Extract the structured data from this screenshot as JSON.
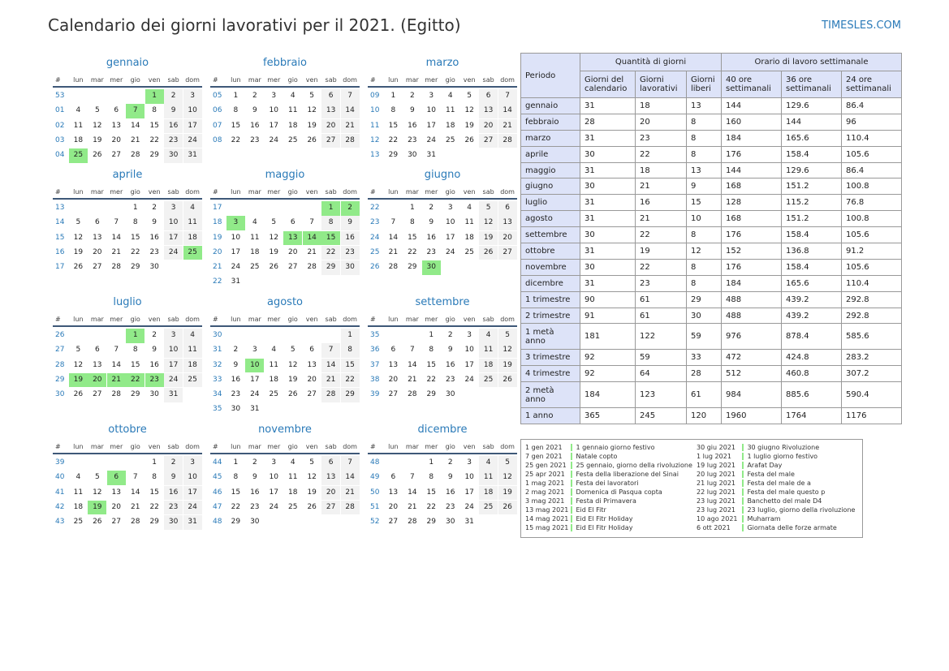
{
  "title": "Calendario dei giorni lavorativi per il 2021. (Egitto)",
  "site": "TIMESLES.COM",
  "day_headers": [
    "#",
    "lun",
    "mar",
    "mer",
    "gio",
    "ven",
    "sab",
    "dom"
  ],
  "colors": {
    "holiday": "#91ea89",
    "weekend": "#f2f2f2",
    "accent": "#2a7ab8"
  },
  "months": [
    {
      "name": "gennaio",
      "rows": [
        {
          "wk": "53",
          "days": [
            "",
            "",
            "",
            "",
            "1",
            "2",
            "3"
          ]
        },
        {
          "wk": "01",
          "days": [
            "4",
            "5",
            "6",
            "7",
            "8",
            "9",
            "10"
          ]
        },
        {
          "wk": "02",
          "days": [
            "11",
            "12",
            "13",
            "14",
            "15",
            "16",
            "17"
          ]
        },
        {
          "wk": "03",
          "days": [
            "18",
            "19",
            "20",
            "21",
            "22",
            "23",
            "24"
          ]
        },
        {
          "wk": "04",
          "days": [
            "25",
            "26",
            "27",
            "28",
            "29",
            "30",
            "31"
          ]
        }
      ],
      "holidays": [
        "1",
        "7",
        "25"
      ]
    },
    {
      "name": "febbraio",
      "rows": [
        {
          "wk": "05",
          "days": [
            "1",
            "2",
            "3",
            "4",
            "5",
            "6",
            "7"
          ]
        },
        {
          "wk": "06",
          "days": [
            "8",
            "9",
            "10",
            "11",
            "12",
            "13",
            "14"
          ]
        },
        {
          "wk": "07",
          "days": [
            "15",
            "16",
            "17",
            "18",
            "19",
            "20",
            "21"
          ]
        },
        {
          "wk": "08",
          "days": [
            "22",
            "23",
            "24",
            "25",
            "26",
            "27",
            "28"
          ]
        }
      ],
      "holidays": []
    },
    {
      "name": "marzo",
      "rows": [
        {
          "wk": "09",
          "days": [
            "1",
            "2",
            "3",
            "4",
            "5",
            "6",
            "7"
          ]
        },
        {
          "wk": "10",
          "days": [
            "8",
            "9",
            "10",
            "11",
            "12",
            "13",
            "14"
          ]
        },
        {
          "wk": "11",
          "days": [
            "15",
            "16",
            "17",
            "18",
            "19",
            "20",
            "21"
          ]
        },
        {
          "wk": "12",
          "days": [
            "22",
            "23",
            "24",
            "25",
            "26",
            "27",
            "28"
          ]
        },
        {
          "wk": "13",
          "days": [
            "29",
            "30",
            "31",
            "",
            "",
            "",
            ""
          ]
        }
      ],
      "holidays": []
    },
    {
      "name": "aprile",
      "rows": [
        {
          "wk": "13",
          "days": [
            "",
            "",
            "",
            "1",
            "2",
            "3",
            "4"
          ]
        },
        {
          "wk": "14",
          "days": [
            "5",
            "6",
            "7",
            "8",
            "9",
            "10",
            "11"
          ]
        },
        {
          "wk": "15",
          "days": [
            "12",
            "13",
            "14",
            "15",
            "16",
            "17",
            "18"
          ]
        },
        {
          "wk": "16",
          "days": [
            "19",
            "20",
            "21",
            "22",
            "23",
            "24",
            "25"
          ]
        },
        {
          "wk": "17",
          "days": [
            "26",
            "27",
            "28",
            "29",
            "30",
            "",
            ""
          ]
        }
      ],
      "holidays": [
        "25"
      ]
    },
    {
      "name": "maggio",
      "rows": [
        {
          "wk": "17",
          "days": [
            "",
            "",
            "",
            "",
            "",
            "1",
            "2"
          ]
        },
        {
          "wk": "18",
          "days": [
            "3",
            "4",
            "5",
            "6",
            "7",
            "8",
            "9"
          ]
        },
        {
          "wk": "19",
          "days": [
            "10",
            "11",
            "12",
            "13",
            "14",
            "15",
            "16"
          ]
        },
        {
          "wk": "20",
          "days": [
            "17",
            "18",
            "19",
            "20",
            "21",
            "22",
            "23"
          ]
        },
        {
          "wk": "21",
          "days": [
            "24",
            "25",
            "26",
            "27",
            "28",
            "29",
            "30"
          ]
        },
        {
          "wk": "22",
          "days": [
            "31",
            "",
            "",
            "",
            "",
            "",
            ""
          ]
        }
      ],
      "holidays": [
        "1",
        "2",
        "3",
        "13",
        "14",
        "15"
      ]
    },
    {
      "name": "giugno",
      "rows": [
        {
          "wk": "22",
          "days": [
            "",
            "1",
            "2",
            "3",
            "4",
            "5",
            "6"
          ]
        },
        {
          "wk": "23",
          "days": [
            "7",
            "8",
            "9",
            "10",
            "11",
            "12",
            "13"
          ]
        },
        {
          "wk": "24",
          "days": [
            "14",
            "15",
            "16",
            "17",
            "18",
            "19",
            "20"
          ]
        },
        {
          "wk": "25",
          "days": [
            "21",
            "22",
            "23",
            "24",
            "25",
            "26",
            "27"
          ]
        },
        {
          "wk": "26",
          "days": [
            "28",
            "29",
            "30",
            "",
            "",
            "",
            ""
          ]
        }
      ],
      "holidays": [
        "30"
      ]
    },
    {
      "name": "luglio",
      "rows": [
        {
          "wk": "26",
          "days": [
            "",
            "",
            "",
            "1",
            "2",
            "3",
            "4"
          ]
        },
        {
          "wk": "27",
          "days": [
            "5",
            "6",
            "7",
            "8",
            "9",
            "10",
            "11"
          ]
        },
        {
          "wk": "28",
          "days": [
            "12",
            "13",
            "14",
            "15",
            "16",
            "17",
            "18"
          ]
        },
        {
          "wk": "29",
          "days": [
            "19",
            "20",
            "21",
            "22",
            "23",
            "24",
            "25"
          ]
        },
        {
          "wk": "30",
          "days": [
            "26",
            "27",
            "28",
            "29",
            "30",
            "31",
            ""
          ]
        }
      ],
      "holidays": [
        "1",
        "19",
        "20",
        "21",
        "22",
        "23"
      ]
    },
    {
      "name": "agosto",
      "rows": [
        {
          "wk": "30",
          "days": [
            "",
            "",
            "",
            "",
            "",
            "",
            "1"
          ]
        },
        {
          "wk": "31",
          "days": [
            "2",
            "3",
            "4",
            "5",
            "6",
            "7",
            "8"
          ]
        },
        {
          "wk": "32",
          "days": [
            "9",
            "10",
            "11",
            "12",
            "13",
            "14",
            "15"
          ]
        },
        {
          "wk": "33",
          "days": [
            "16",
            "17",
            "18",
            "19",
            "20",
            "21",
            "22"
          ]
        },
        {
          "wk": "34",
          "days": [
            "23",
            "24",
            "25",
            "26",
            "27",
            "28",
            "29"
          ]
        },
        {
          "wk": "35",
          "days": [
            "30",
            "31",
            "",
            "",
            "",
            "",
            ""
          ]
        }
      ],
      "holidays": [
        "10"
      ]
    },
    {
      "name": "settembre",
      "rows": [
        {
          "wk": "35",
          "days": [
            "",
            "",
            "1",
            "2",
            "3",
            "4",
            "5"
          ]
        },
        {
          "wk": "36",
          "days": [
            "6",
            "7",
            "8",
            "9",
            "10",
            "11",
            "12"
          ]
        },
        {
          "wk": "37",
          "days": [
            "13",
            "14",
            "15",
            "16",
            "17",
            "18",
            "19"
          ]
        },
        {
          "wk": "38",
          "days": [
            "20",
            "21",
            "22",
            "23",
            "24",
            "25",
            "26"
          ]
        },
        {
          "wk": "39",
          "days": [
            "27",
            "28",
            "29",
            "30",
            "",
            "",
            ""
          ]
        }
      ],
      "holidays": []
    },
    {
      "name": "ottobre",
      "rows": [
        {
          "wk": "39",
          "days": [
            "",
            "",
            "",
            "",
            "1",
            "2",
            "3"
          ]
        },
        {
          "wk": "40",
          "days": [
            "4",
            "5",
            "6",
            "7",
            "8",
            "9",
            "10"
          ]
        },
        {
          "wk": "41",
          "days": [
            "11",
            "12",
            "13",
            "14",
            "15",
            "16",
            "17"
          ]
        },
        {
          "wk": "42",
          "days": [
            "18",
            "19",
            "20",
            "21",
            "22",
            "23",
            "24"
          ]
        },
        {
          "wk": "43",
          "days": [
            "25",
            "26",
            "27",
            "28",
            "29",
            "30",
            "31"
          ]
        }
      ],
      "holidays": [
        "6",
        "19"
      ]
    },
    {
      "name": "novembre",
      "rows": [
        {
          "wk": "44",
          "days": [
            "1",
            "2",
            "3",
            "4",
            "5",
            "6",
            "7"
          ]
        },
        {
          "wk": "45",
          "days": [
            "8",
            "9",
            "10",
            "11",
            "12",
            "13",
            "14"
          ]
        },
        {
          "wk": "46",
          "days": [
            "15",
            "16",
            "17",
            "18",
            "19",
            "20",
            "21"
          ]
        },
        {
          "wk": "47",
          "days": [
            "22",
            "23",
            "24",
            "25",
            "26",
            "27",
            "28"
          ]
        },
        {
          "wk": "48",
          "days": [
            "29",
            "30",
            "",
            "",
            "",
            "",
            ""
          ]
        }
      ],
      "holidays": []
    },
    {
      "name": "dicembre",
      "rows": [
        {
          "wk": "48",
          "days": [
            "",
            "",
            "1",
            "2",
            "3",
            "4",
            "5"
          ]
        },
        {
          "wk": "49",
          "days": [
            "6",
            "7",
            "8",
            "9",
            "10",
            "11",
            "12"
          ]
        },
        {
          "wk": "50",
          "days": [
            "13",
            "14",
            "15",
            "16",
            "17",
            "18",
            "19"
          ]
        },
        {
          "wk": "51",
          "days": [
            "20",
            "21",
            "22",
            "23",
            "24",
            "25",
            "26"
          ]
        },
        {
          "wk": "52",
          "days": [
            "27",
            "28",
            "29",
            "30",
            "31",
            "",
            ""
          ]
        }
      ],
      "holidays": []
    }
  ],
  "table": {
    "periodo": "Periodo",
    "group1": "Quantità di giorni",
    "group2": "Orario di lavoro settimanale",
    "cols": [
      "Giorni del calendario",
      "Giorni lavorativi",
      "Giorni liberi",
      "40 ore settimanali",
      "36 ore settimanali",
      "24 ore settimanali"
    ],
    "rows": [
      [
        "gennaio",
        "31",
        "18",
        "13",
        "144",
        "129.6",
        "86.4"
      ],
      [
        "febbraio",
        "28",
        "20",
        "8",
        "160",
        "144",
        "96"
      ],
      [
        "marzo",
        "31",
        "23",
        "8",
        "184",
        "165.6",
        "110.4"
      ],
      [
        "aprile",
        "30",
        "22",
        "8",
        "176",
        "158.4",
        "105.6"
      ],
      [
        "maggio",
        "31",
        "18",
        "13",
        "144",
        "129.6",
        "86.4"
      ],
      [
        "giugno",
        "30",
        "21",
        "9",
        "168",
        "151.2",
        "100.8"
      ],
      [
        "luglio",
        "31",
        "16",
        "15",
        "128",
        "115.2",
        "76.8"
      ],
      [
        "agosto",
        "31",
        "21",
        "10",
        "168",
        "151.2",
        "100.8"
      ],
      [
        "settembre",
        "30",
        "22",
        "8",
        "176",
        "158.4",
        "105.6"
      ],
      [
        "ottobre",
        "31",
        "19",
        "12",
        "152",
        "136.8",
        "91.2"
      ],
      [
        "novembre",
        "30",
        "22",
        "8",
        "176",
        "158.4",
        "105.6"
      ],
      [
        "dicembre",
        "31",
        "23",
        "8",
        "184",
        "165.6",
        "110.4"
      ],
      [
        "1 trimestre",
        "90",
        "61",
        "29",
        "488",
        "439.2",
        "292.8"
      ],
      [
        "2 trimestre",
        "91",
        "61",
        "30",
        "488",
        "439.2",
        "292.8"
      ],
      [
        "1 metà anno",
        "181",
        "122",
        "59",
        "976",
        "878.4",
        "585.6"
      ],
      [
        "3 trimestre",
        "92",
        "59",
        "33",
        "472",
        "424.8",
        "283.2"
      ],
      [
        "4 trimestre",
        "92",
        "64",
        "28",
        "512",
        "460.8",
        "307.2"
      ],
      [
        "2 metà anno",
        "184",
        "123",
        "61",
        "984",
        "885.6",
        "590.4"
      ],
      [
        "1 anno",
        "365",
        "245",
        "120",
        "1960",
        "1764",
        "1176"
      ]
    ]
  },
  "holidays_left": [
    {
      "date": "1 gen 2021",
      "name": "1 gennaio giorno festivo"
    },
    {
      "date": "7 gen 2021",
      "name": "Natale copto"
    },
    {
      "date": "25 gen 2021",
      "name": "25 gennaio, giorno della rivoluzione"
    },
    {
      "date": "25 apr 2021",
      "name": "Festa della liberazione del Sinai"
    },
    {
      "date": "1 mag 2021",
      "name": "Festa dei lavoratori"
    },
    {
      "date": "2 mag 2021",
      "name": "Domenica di Pasqua copta"
    },
    {
      "date": "3 mag 2021",
      "name": "Festa di Primavera"
    },
    {
      "date": "13 mag 2021",
      "name": "Eid El Fitr"
    },
    {
      "date": "14 mag 2021",
      "name": "Eid El Fitr Holiday"
    },
    {
      "date": "15 mag 2021",
      "name": "Eid El Fitr Holiday"
    }
  ],
  "holidays_right": [
    {
      "date": "30 giu 2021",
      "name": "30 giugno Rivoluzione"
    },
    {
      "date": "1 lug 2021",
      "name": "1 luglio giorno festivo"
    },
    {
      "date": "19 lug 2021",
      "name": "Arafat Day"
    },
    {
      "date": "20 lug 2021",
      "name": "Festa del male"
    },
    {
      "date": "21 lug 2021",
      "name": "Festa del male de a"
    },
    {
      "date": "22 lug 2021",
      "name": "Festa del male questo p"
    },
    {
      "date": "23 lug 2021",
      "name": "Banchetto del male D4"
    },
    {
      "date": "23 lug 2021",
      "name": "23 luglio, giorno della rivoluzione"
    },
    {
      "date": "10 ago 2021",
      "name": "Muharram"
    },
    {
      "date": "6 ott 2021",
      "name": "Giornata delle forze armate"
    }
  ]
}
